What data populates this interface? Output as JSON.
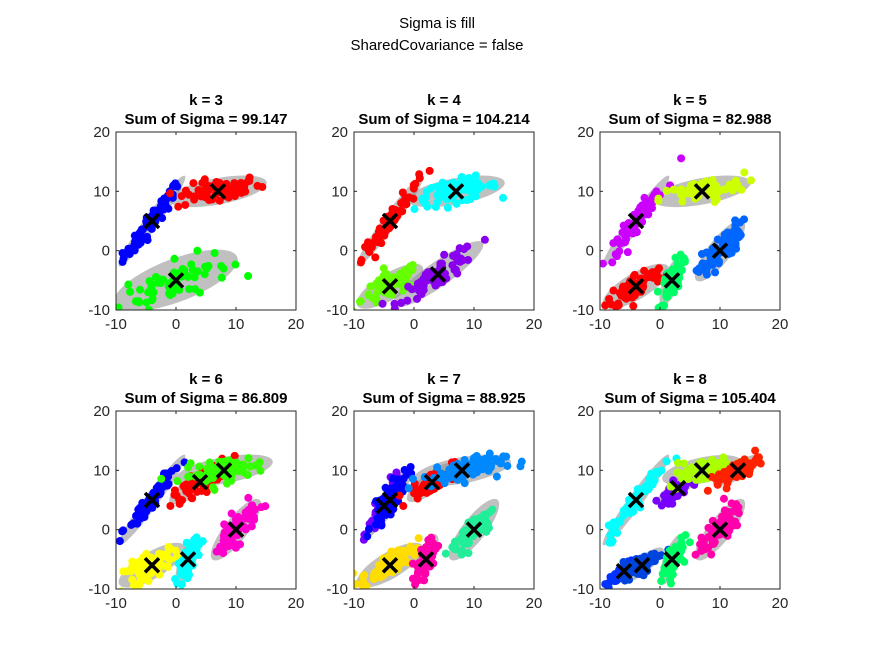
{
  "figure": {
    "title_line1": "Sigma is fill",
    "title_line2": "SharedCovariance = false"
  },
  "chart_data": [
    {
      "type": "scatter",
      "title": "k = 3",
      "subtitle": "Sum of Sigma = 99.147",
      "xlim": [
        -10,
        20
      ],
      "ylim": [
        -10,
        20
      ],
      "xticks": [
        -10,
        0,
        10,
        20
      ],
      "yticks": [
        -10,
        0,
        10,
        20
      ],
      "clusters": [
        {
          "color": "#0000ff",
          "center": [
            -4,
            5
          ],
          "cov": [
            [
              7.0,
              9.2
            ],
            [
              9.2,
              13.0
            ]
          ]
        },
        {
          "color": "#ff0000",
          "center": [
            7,
            10
          ],
          "cov": [
            [
              15.0,
              2.6
            ],
            [
              2.6,
              1.6
            ]
          ]
        },
        {
          "color": "#00ff00",
          "center": [
            0,
            -5
          ],
          "cov": [
            [
              24.0,
              8.0
            ],
            [
              8.0,
              6.0
            ]
          ]
        }
      ]
    },
    {
      "type": "scatter",
      "title": "k = 4",
      "subtitle": "Sum of Sigma = 104.214",
      "xlim": [
        -10,
        20
      ],
      "ylim": [
        -10,
        20
      ],
      "xticks": [
        -10,
        0,
        10,
        20
      ],
      "yticks": [
        -10,
        0,
        10,
        20
      ],
      "clusters": [
        {
          "color": "#ff0000",
          "center": [
            -4,
            5
          ],
          "cov": [
            [
              7.0,
              9.2
            ],
            [
              9.2,
              13.0
            ]
          ]
        },
        {
          "color": "#00ffff",
          "center": [
            7,
            10
          ],
          "cov": [
            [
              15.0,
              2.6
            ],
            [
              2.6,
              1.6
            ]
          ]
        },
        {
          "color": "#66ff00",
          "center": [
            -4,
            -6
          ],
          "cov": [
            [
              7.0,
              3.5
            ],
            [
              3.5,
              3.2
            ]
          ]
        },
        {
          "color": "#8800ee",
          "center": [
            4,
            -4
          ],
          "cov": [
            [
              13.0,
              8.5
            ],
            [
              8.5,
              7.0
            ]
          ]
        }
      ]
    },
    {
      "type": "scatter",
      "title": "k = 5",
      "subtitle": "Sum of Sigma = 82.988",
      "xlim": [
        -10,
        20
      ],
      "ylim": [
        -10,
        20
      ],
      "xticks": [
        -10,
        0,
        10,
        20
      ],
      "yticks": [
        -10,
        0,
        10,
        20
      ],
      "clusters": [
        {
          "color": "#cc00ff",
          "center": [
            -4,
            5
          ],
          "cov": [
            [
              7.0,
              9.2
            ],
            [
              9.2,
              13.0
            ]
          ]
        },
        {
          "color": "#ccff00",
          "center": [
            7,
            10
          ],
          "cov": [
            [
              15.0,
              2.6
            ],
            [
              2.6,
              1.6
            ]
          ]
        },
        {
          "color": "#ff0000",
          "center": [
            -4,
            -6
          ],
          "cov": [
            [
              7.0,
              3.5
            ],
            [
              3.5,
              3.2
            ]
          ]
        },
        {
          "color": "#00ff66",
          "center": [
            2,
            -5
          ],
          "cov": [
            [
              1.0,
              1.4
            ],
            [
              1.4,
              4.0
            ]
          ]
        },
        {
          "color": "#0066ff",
          "center": [
            10,
            0
          ],
          "cov": [
            [
              4.0,
              4.0
            ],
            [
              4.0,
              6.0
            ]
          ]
        }
      ]
    },
    {
      "type": "scatter",
      "title": "k = 6",
      "subtitle": "Sum of Sigma = 86.809",
      "xlim": [
        -10,
        20
      ],
      "ylim": [
        -10,
        20
      ],
      "xticks": [
        -10,
        0,
        10,
        20
      ],
      "yticks": [
        -10,
        0,
        10,
        20
      ],
      "clusters": [
        {
          "color": "#0000ff",
          "center": [
            -4,
            5
          ],
          "cov": [
            [
              7.0,
              9.2
            ],
            [
              9.2,
              13.0
            ]
          ]
        },
        {
          "color": "#ff0000",
          "center": [
            4,
            8
          ],
          "cov": [
            [
              6.0,
              3.5
            ],
            [
              3.5,
              3.0
            ]
          ]
        },
        {
          "color": "#33ff00",
          "center": [
            8,
            10
          ],
          "cov": [
            [
              15.0,
              2.6
            ],
            [
              2.6,
              1.6
            ]
          ]
        },
        {
          "color": "#ffff00",
          "center": [
            -4,
            -6
          ],
          "cov": [
            [
              7.0,
              3.5
            ],
            [
              3.5,
              3.2
            ]
          ]
        },
        {
          "color": "#00ffff",
          "center": [
            2,
            -5
          ],
          "cov": [
            [
              1.0,
              1.4
            ],
            [
              1.4,
              4.0
            ]
          ]
        },
        {
          "color": "#ff00cc",
          "center": [
            10,
            0
          ],
          "cov": [
            [
              4.0,
              4.0
            ],
            [
              4.0,
              6.0
            ]
          ]
        }
      ]
    },
    {
      "type": "scatter",
      "title": "k = 7",
      "subtitle": "Sum of Sigma = 88.925",
      "xlim": [
        -10,
        20
      ],
      "ylim": [
        -10,
        20
      ],
      "xticks": [
        -10,
        0,
        10,
        20
      ],
      "yticks": [
        -10,
        0,
        10,
        20
      ],
      "clusters": [
        {
          "color": "#7700ff",
          "center": [
            -5,
            4
          ],
          "cov": [
            [
              2.0,
              3.0
            ],
            [
              3.0,
              6.0
            ]
          ]
        },
        {
          "color": "#0000ff",
          "center": [
            -4,
            5
          ],
          "cov": [
            [
              3.0,
              4.0
            ],
            [
              4.0,
              7.0
            ]
          ]
        },
        {
          "color": "#ff0000",
          "center": [
            3,
            8
          ],
          "cov": [
            [
              4.0,
              2.5
            ],
            [
              2.5,
              2.5
            ]
          ]
        },
        {
          "color": "#0088ff",
          "center": [
            8,
            10
          ],
          "cov": [
            [
              15.0,
              2.6
            ],
            [
              2.6,
              1.6
            ]
          ]
        },
        {
          "color": "#ffdd00",
          "center": [
            -4,
            -6
          ],
          "cov": [
            [
              7.0,
              3.5
            ],
            [
              3.5,
              3.2
            ]
          ]
        },
        {
          "color": "#ff00aa",
          "center": [
            2,
            -5
          ],
          "cov": [
            [
              1.0,
              1.4
            ],
            [
              1.4,
              4.0
            ]
          ]
        },
        {
          "color": "#22ee99",
          "center": [
            10,
            0
          ],
          "cov": [
            [
              4.0,
              4.0
            ],
            [
              4.0,
              6.0
            ]
          ]
        }
      ]
    },
    {
      "type": "scatter",
      "title": "k = 8",
      "subtitle": "Sum of Sigma = 105.404",
      "xlim": [
        -10,
        20
      ],
      "ylim": [
        -10,
        20
      ],
      "xticks": [
        -10,
        0,
        10,
        20
      ],
      "yticks": [
        -10,
        0,
        10,
        20
      ],
      "clusters": [
        {
          "color": "#00ffff",
          "center": [
            -4,
            5
          ],
          "cov": [
            [
              7.0,
              9.2
            ],
            [
              9.2,
              13.0
            ]
          ]
        },
        {
          "color": "#7700ff",
          "center": [
            3,
            7
          ],
          "cov": [
            [
              3.0,
              2.0
            ],
            [
              2.0,
              2.0
            ]
          ]
        },
        {
          "color": "#aaff00",
          "center": [
            7,
            10
          ],
          "cov": [
            [
              10.0,
              2.0
            ],
            [
              2.0,
              1.5
            ]
          ]
        },
        {
          "color": "#ff2200",
          "center": [
            13,
            10
          ],
          "cov": [
            [
              4.0,
              2.0
            ],
            [
              2.0,
              1.6
            ]
          ]
        },
        {
          "color": "#0033ff",
          "center": [
            -6,
            -7
          ],
          "cov": [
            [
              2.0,
              1.5
            ],
            [
              1.5,
              1.5
            ]
          ]
        },
        {
          "color": "#0044dd",
          "center": [
            -3,
            -6
          ],
          "cov": [
            [
              3.0,
              2.0
            ],
            [
              2.0,
              2.0
            ]
          ]
        },
        {
          "color": "#00ff66",
          "center": [
            2,
            -5
          ],
          "cov": [
            [
              1.0,
              1.4
            ],
            [
              1.4,
              4.0
            ]
          ]
        },
        {
          "color": "#ff00aa",
          "center": [
            10,
            0
          ],
          "cov": [
            [
              4.0,
              4.0
            ],
            [
              4.0,
              6.0
            ]
          ]
        }
      ]
    }
  ]
}
